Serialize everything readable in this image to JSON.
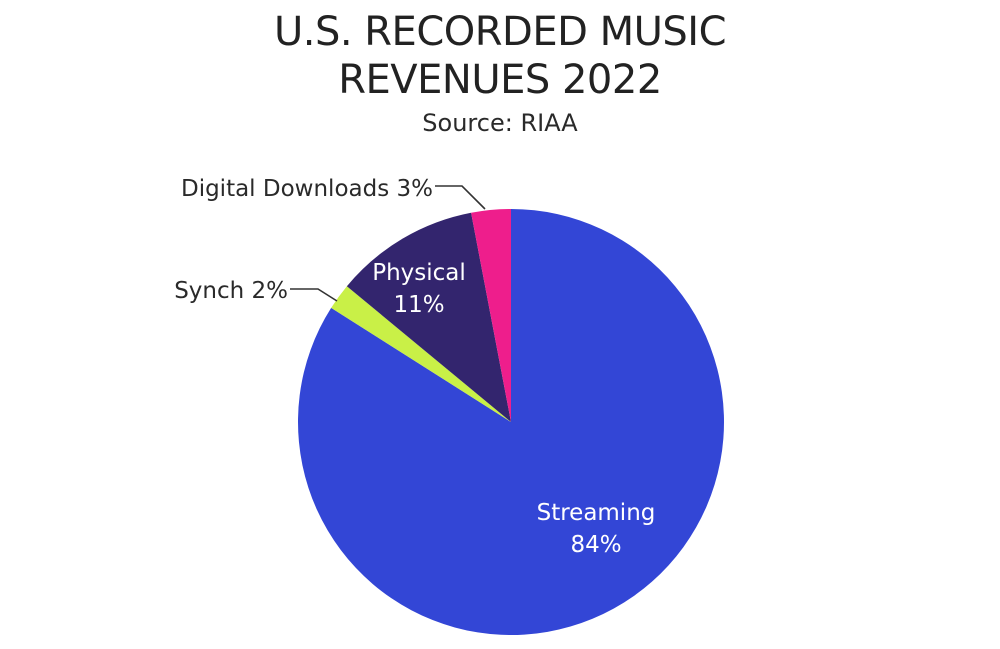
{
  "chart_data": {
    "type": "pie",
    "title_lines": [
      "U.S. RECORDED MUSIC",
      "REVENUES 2022"
    ],
    "subtitle": "Source: RIAA",
    "slices": [
      {
        "name": "Streaming",
        "value": 84,
        "value_label": "84%",
        "color": "#3346d6",
        "label_placement": "inside"
      },
      {
        "name": "Synch",
        "value": 2,
        "value_label": "2%",
        "color": "#c9f047",
        "label_placement": "outside-left"
      },
      {
        "name": "Physical",
        "value": 11,
        "value_label": "11%",
        "color": "#33256e",
        "label_placement": "inside"
      },
      {
        "name": "Digital Downloads",
        "value": 3,
        "value_label": "3%",
        "color": "#ee1e8c",
        "label_placement": "outside-left"
      }
    ],
    "start": "12 o'clock",
    "direction": "clockwise"
  }
}
